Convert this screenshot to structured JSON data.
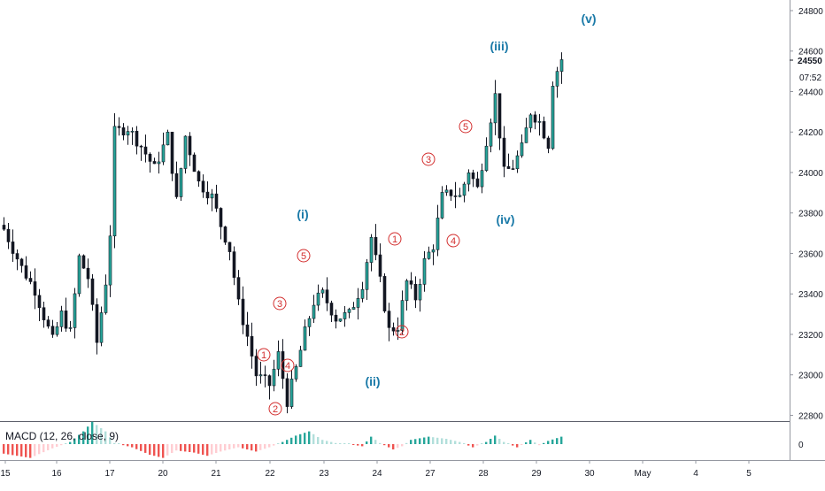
{
  "chart_data": {
    "type": "candlestick",
    "price_axis": {
      "ticks": [
        "24800",
        "24600",
        "24400",
        "24200",
        "24000",
        "23800",
        "23600",
        "23400",
        "23200",
        "23000",
        "22800"
      ],
      "current_price": "24550",
      "countdown": "07:52",
      "ylim": [
        22720,
        24840
      ]
    },
    "time_axis": {
      "ticks": [
        "15",
        "16",
        "17",
        "20",
        "21",
        "22",
        "23",
        "24",
        "27",
        "28",
        "29",
        "30",
        "May",
        "4",
        "5"
      ]
    },
    "wave_labels": {
      "primary": [
        "(i)",
        "(ii)",
        "(iii)",
        "(iv)",
        "(v)"
      ],
      "sub": [
        "1",
        "2",
        "3",
        "4",
        "5",
        "1",
        "2",
        "3",
        "4",
        "5"
      ]
    },
    "macd": {
      "label": "MACD (12, 26, close, 9)",
      "axis_tick": "0"
    },
    "waypoints": [
      [
        0,
        23720
      ],
      [
        4,
        23530
      ],
      [
        7,
        23420
      ],
      [
        9,
        23290
      ],
      [
        11,
        23170
      ],
      [
        13,
        23300
      ],
      [
        15,
        23210
      ],
      [
        17,
        23580
      ],
      [
        19,
        23480
      ],
      [
        21,
        23160
      ],
      [
        23,
        23460
      ],
      [
        24,
        23700
      ],
      [
        25,
        24200
      ],
      [
        28,
        24220
      ],
      [
        31,
        24130
      ],
      [
        34,
        24020
      ],
      [
        37,
        24180
      ],
      [
        39,
        23860
      ],
      [
        41,
        24180
      ],
      [
        44,
        23950
      ],
      [
        47,
        23880
      ],
      [
        49,
        23740
      ],
      [
        51,
        23620
      ],
      [
        53,
        23350
      ],
      [
        55,
        23190
      ],
      [
        57,
        23000
      ],
      [
        60,
        22950
      ],
      [
        62,
        23100
      ],
      [
        64,
        22870
      ],
      [
        66,
        23030
      ],
      [
        68,
        23210
      ],
      [
        70,
        23360
      ],
      [
        72,
        23400
      ],
      [
        75,
        23280
      ],
      [
        78,
        23300
      ],
      [
        81,
        23450
      ],
      [
        83,
        23680
      ],
      [
        85,
        23460
      ],
      [
        87,
        23220
      ],
      [
        89,
        23240
      ],
      [
        91,
        23460
      ],
      [
        93,
        23380
      ],
      [
        95,
        23560
      ],
      [
        97,
        23640
      ],
      [
        99,
        23880
      ],
      [
        101,
        23900
      ],
      [
        103,
        23880
      ],
      [
        105,
        24010
      ],
      [
        107,
        23920
      ],
      [
        109,
        24160
      ],
      [
        111,
        24380
      ],
      [
        113,
        24000
      ],
      [
        115,
        24030
      ],
      [
        117,
        24120
      ],
      [
        119,
        24300
      ],
      [
        121,
        24250
      ],
      [
        123,
        24140
      ],
      [
        124,
        24450
      ],
      [
        126,
        24560
      ]
    ],
    "macd_waypoints": [
      [
        0,
        -18
      ],
      [
        6,
        -26
      ],
      [
        11,
        -8
      ],
      [
        15,
        4
      ],
      [
        18,
        24
      ],
      [
        20,
        42
      ],
      [
        23,
        24
      ],
      [
        25,
        2
      ],
      [
        29,
        -6
      ],
      [
        33,
        -20
      ],
      [
        36,
        -26
      ],
      [
        39,
        -12
      ],
      [
        43,
        -16
      ],
      [
        46,
        -22
      ],
      [
        49,
        -14
      ],
      [
        53,
        -6
      ],
      [
        57,
        -14
      ],
      [
        60,
        -6
      ],
      [
        63,
        4
      ],
      [
        66,
        16
      ],
      [
        69,
        24
      ],
      [
        72,
        8
      ],
      [
        75,
        2
      ],
      [
        78,
        0
      ],
      [
        81,
        -4
      ],
      [
        83,
        14
      ],
      [
        85,
        2
      ],
      [
        88,
        -10
      ],
      [
        90,
        -4
      ],
      [
        92,
        8
      ],
      [
        96,
        14
      ],
      [
        100,
        10
      ],
      [
        103,
        4
      ],
      [
        106,
        -6
      ],
      [
        109,
        4
      ],
      [
        111,
        16
      ],
      [
        113,
        4
      ],
      [
        116,
        -6
      ],
      [
        119,
        8
      ],
      [
        121,
        -2
      ],
      [
        123,
        6
      ],
      [
        126,
        14
      ]
    ]
  }
}
